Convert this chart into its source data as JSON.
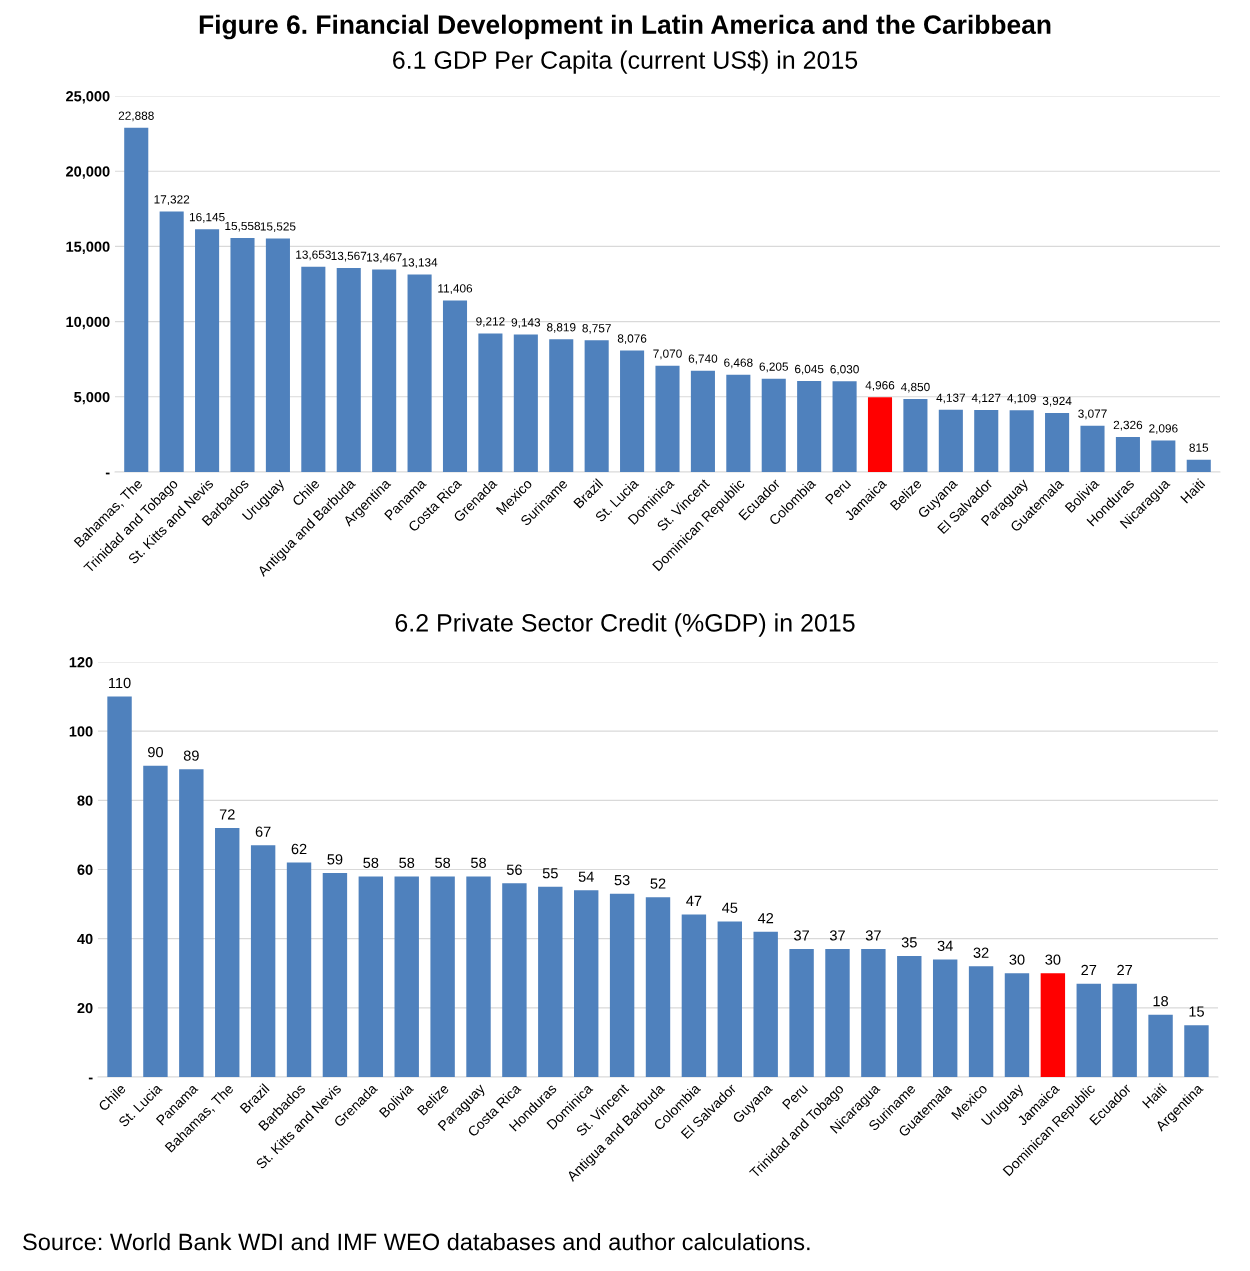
{
  "chart_data": [
    {
      "type": "bar",
      "title": "Figure 6. Financial Development in Latin America and the Caribbean",
      "subtitle": "6.1 GDP Per Capita (current US$) in 2015",
      "categories": [
        "Bahamas, The",
        "Trinidad and Tobago",
        "St. Kitts and Nevis",
        "Barbados",
        "Uruguay",
        "Chile",
        "Antigua and Barbuda",
        "Argentina",
        "Panama",
        "Costa Rica",
        "Grenada",
        "Mexico",
        "Suriname",
        "Brazil",
        "St. Lucia",
        "Dominica",
        "St. Vincent",
        "Dominican Republic",
        "Ecuador",
        "Colombia",
        "Peru",
        "Jamaica",
        "Belize",
        "Guyana",
        "El Salvador",
        "Paraguay",
        "Guatemala",
        "Bolivia",
        "Honduras",
        "Nicaragua",
        "Haiti"
      ],
      "values": [
        22888,
        17322,
        16145,
        15558,
        15525,
        13653,
        13567,
        13467,
        13134,
        11406,
        9212,
        9143,
        8819,
        8757,
        8076,
        7070,
        6740,
        6468,
        6205,
        6045,
        6030,
        4966,
        4850,
        4137,
        4127,
        4109,
        3924,
        3077,
        2326,
        2096,
        815
      ],
      "value_labels": [
        "22,888",
        "17,322",
        "16,145",
        "15,558",
        "15,525",
        "13,653",
        "13,567",
        "13,467",
        "13,134",
        "11,406",
        "9,212",
        "9,143",
        "8,819",
        "8,757",
        "8,076",
        "7,070",
        "6,740",
        "6,468",
        "6,205",
        "6,045",
        "6,030",
        "4,966",
        "4,850",
        "4,137",
        "4,127",
        "4,109",
        "3,924",
        "3,077",
        "2,326",
        "2,096",
        "815"
      ],
      "colors": [
        "#4f81bd",
        "#4f81bd",
        "#4f81bd",
        "#4f81bd",
        "#4f81bd",
        "#4f81bd",
        "#4f81bd",
        "#4f81bd",
        "#4f81bd",
        "#4f81bd",
        "#4f81bd",
        "#4f81bd",
        "#4f81bd",
        "#4f81bd",
        "#4f81bd",
        "#4f81bd",
        "#4f81bd",
        "#4f81bd",
        "#4f81bd",
        "#4f81bd",
        "#4f81bd",
        "#ff0000",
        "#4f81bd",
        "#4f81bd",
        "#4f81bd",
        "#4f81bd",
        "#4f81bd",
        "#4f81bd",
        "#4f81bd",
        "#4f81bd",
        "#4f81bd"
      ],
      "ylim": [
        0,
        25000
      ],
      "yticks": [
        {
          "value": 0,
          "label": "-"
        },
        {
          "value": 5000,
          "label": "5,000"
        },
        {
          "value": 10000,
          "label": "10,000"
        },
        {
          "value": 15000,
          "label": "15,000"
        },
        {
          "value": 20000,
          "label": "20,000"
        },
        {
          "value": 25000,
          "label": "25,000"
        }
      ],
      "grid": "y"
    },
    {
      "type": "bar",
      "title": "6.2 Private Sector Credit (%GDP) in 2015",
      "categories": [
        "Chile",
        "St. Lucia",
        "Panama",
        "Bahamas, The",
        "Brazil",
        "Barbados",
        "St. Kitts and Nevis",
        "Grenada",
        "Bolivia",
        "Belize",
        "Paraguay",
        "Costa Rica",
        "Honduras",
        "Dominica",
        "St. Vincent",
        "Antigua and Barbuda",
        "Colombia",
        "El Salvador",
        "Guyana",
        "Peru",
        "Trinidad and Tobago",
        "Nicaragua",
        "Suriname",
        "Guatemala",
        "Mexico",
        "Uruguay",
        "Jamaica",
        "Dominican Republic",
        "Ecuador",
        "Haiti",
        "Argentina"
      ],
      "values": [
        110,
        90,
        89,
        72,
        67,
        62,
        59,
        58,
        58,
        58,
        58,
        56,
        55,
        54,
        53,
        52,
        47,
        45,
        42,
        37,
        37,
        37,
        35,
        34,
        32,
        30,
        30,
        27,
        27,
        18,
        15
      ],
      "data_labels": true,
      "colors": [
        "#4f81bd",
        "#4f81bd",
        "#4f81bd",
        "#4f81bd",
        "#4f81bd",
        "#4f81bd",
        "#4f81bd",
        "#4f81bd",
        "#4f81bd",
        "#4f81bd",
        "#4f81bd",
        "#4f81bd",
        "#4f81bd",
        "#4f81bd",
        "#4f81bd",
        "#4f81bd",
        "#4f81bd",
        "#4f81bd",
        "#4f81bd",
        "#4f81bd",
        "#4f81bd",
        "#4f81bd",
        "#4f81bd",
        "#4f81bd",
        "#4f81bd",
        "#4f81bd",
        "#ff0000",
        "#4f81bd",
        "#4f81bd",
        "#4f81bd",
        "#4f81bd"
      ],
      "ylim": [
        0,
        120
      ],
      "yticks": [
        {
          "value": 0,
          "label": "-"
        },
        20,
        40,
        60,
        80,
        100,
        120
      ],
      "grid": "y",
      "annotations": [
        "Source: World Bank WDI and IMF WEO databases and author calculations."
      ]
    }
  ]
}
